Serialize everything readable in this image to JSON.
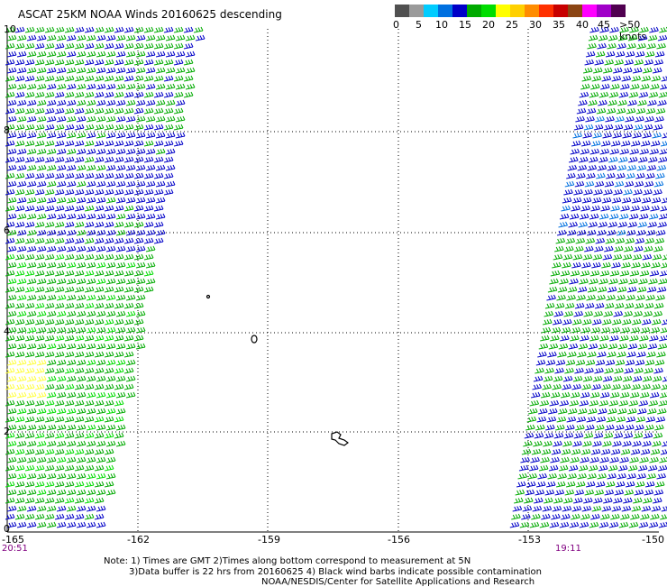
{
  "title": "ASCAT 25KM NOAA Winds 20160625 descending",
  "colorbar": {
    "colors": [
      "#505050",
      "#9a9a9a",
      "#00ccff",
      "#0070e0",
      "#0000c8",
      "#00aa00",
      "#00dd00",
      "#ffff00",
      "#ffd000",
      "#ff8c00",
      "#ff3000",
      "#c80000",
      "#8b4513",
      "#ff00ff",
      "#a000c8",
      "#500050"
    ],
    "labels": [
      "0",
      "5",
      "10",
      "15",
      "20",
      "25",
      "30",
      "35",
      "40",
      "45",
      ">50 knots"
    ]
  },
  "axes": {
    "x_ticks": [
      "-165",
      "-162",
      "-159",
      "-156",
      "-153",
      "-150"
    ],
    "y_ticks": [
      "10",
      "8",
      "6",
      "4",
      "2",
      "0"
    ]
  },
  "times": {
    "left": "20:51",
    "right": "19:11"
  },
  "notes": {
    "line1": "Note: 1) Times are GMT 2)Times along bottom correspond to measurement at 5N",
    "line2": "3)Data buffer is 22 hrs from 20160625 4) Black wind barbs indicate possible contamination",
    "line3": "NOAA/NESDIS/Center for Satellite Applications and Research"
  },
  "colors": {
    "blue_barb": "#0000c8",
    "green_barb": "#00aa00",
    "lightgreen_barb": "#00dd00",
    "yellow_barb": "#ffff40"
  }
}
